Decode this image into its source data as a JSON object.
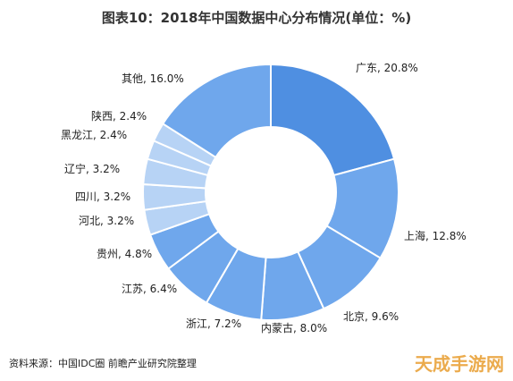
{
  "title": "图表10：2018年中国数据中心分布情况(单位：%)",
  "source": "资料来源：中国IDC圈 前瞻产业研究院整理",
  "watermark": "天成手游网",
  "colors": {
    "first_slice": "#4f8fe1",
    "other_slices": "#6fa7ec",
    "small_slices": "#b7d3f5",
    "stroke": "#ffffff"
  },
  "chart_data": {
    "type": "pie",
    "title": "图表10：2018年中国数据中心分布情况(单位：%)",
    "unit": "%",
    "categories": [
      "广东",
      "上海",
      "北京",
      "内蒙古",
      "浙江",
      "江苏",
      "贵州",
      "河北",
      "四川",
      "辽宁",
      "黑龙江",
      "陕西",
      "其他"
    ],
    "values": [
      20.8,
      12.8,
      9.6,
      8.0,
      7.2,
      6.4,
      4.8,
      3.2,
      3.2,
      3.2,
      2.4,
      2.4,
      16.0
    ],
    "labels": [
      "广东, 20.8%",
      "上海, 12.8%",
      "北京, 9.6%",
      "内蒙古, 8.0%",
      "浙江, 7.2%",
      "江苏, 6.4%",
      "贵州, 4.8%",
      "河北, 3.2%",
      "四川, 3.2%",
      "辽宁, 3.2%",
      "黑龙江, 2.4%",
      "陕西, 2.4%",
      "其他, 16.0%"
    ]
  }
}
